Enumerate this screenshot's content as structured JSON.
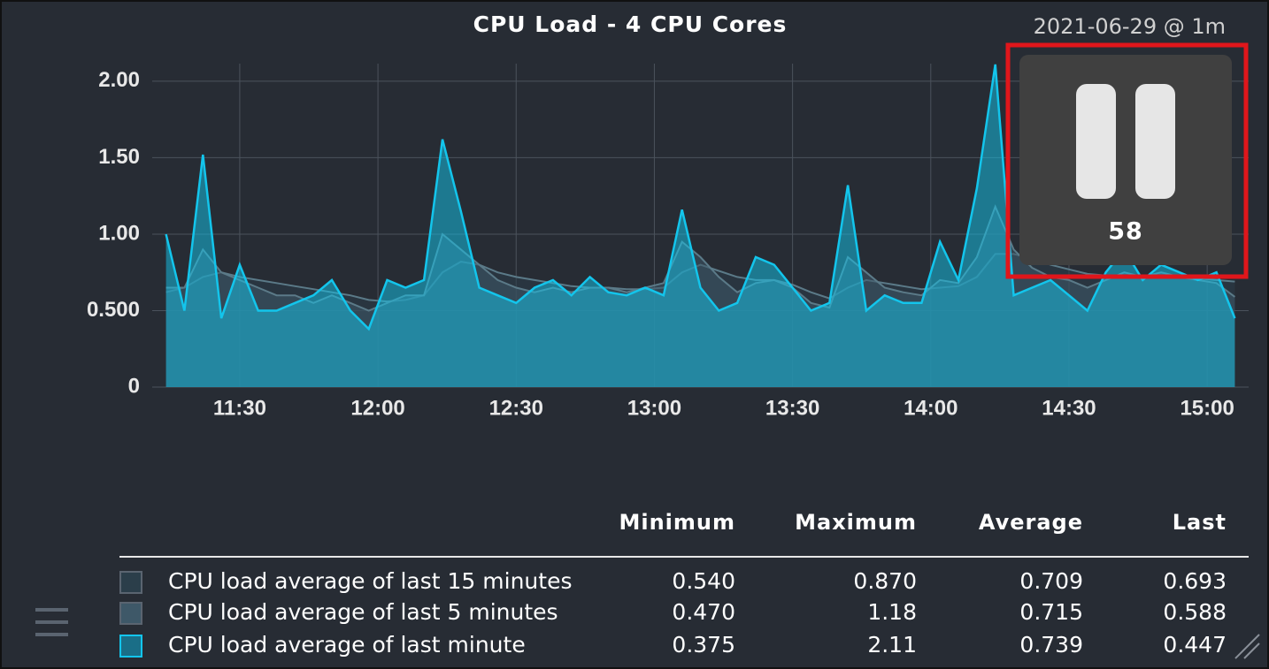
{
  "chart_data": {
    "type": "area-line",
    "title": "CPU Load - 4 CPU Cores",
    "x": [
      "11:14",
      "11:18",
      "11:22",
      "11:26",
      "11:30",
      "11:34",
      "11:38",
      "11:42",
      "11:46",
      "11:50",
      "11:54",
      "11:58",
      "12:02",
      "12:06",
      "12:10",
      "12:14",
      "12:18",
      "12:22",
      "12:26",
      "12:30",
      "12:34",
      "12:38",
      "12:42",
      "12:46",
      "12:50",
      "12:54",
      "12:58",
      "13:02",
      "13:06",
      "13:10",
      "13:14",
      "13:18",
      "13:22",
      "13:26",
      "13:30",
      "13:34",
      "13:38",
      "13:42",
      "13:46",
      "13:50",
      "13:54",
      "13:58",
      "14:02",
      "14:06",
      "14:10",
      "14:14",
      "14:18",
      "14:22",
      "14:26",
      "14:30",
      "14:34",
      "14:38",
      "14:42",
      "14:46",
      "14:50",
      "14:54",
      "14:58",
      "15:02",
      "15:06"
    ],
    "series": [
      {
        "name": "CPU load average of last 15 minutes",
        "color": "#2b3e4a",
        "values": [
          0.62,
          0.65,
          0.72,
          0.75,
          0.72,
          0.7,
          0.68,
          0.66,
          0.64,
          0.62,
          0.6,
          0.57,
          0.56,
          0.57,
          0.6,
          0.75,
          0.82,
          0.8,
          0.75,
          0.72,
          0.7,
          0.68,
          0.66,
          0.65,
          0.65,
          0.64,
          0.64,
          0.65,
          0.75,
          0.8,
          0.76,
          0.72,
          0.7,
          0.7,
          0.67,
          0.62,
          0.58,
          0.65,
          0.7,
          0.68,
          0.66,
          0.64,
          0.65,
          0.66,
          0.72,
          0.87,
          0.87,
          0.84,
          0.8,
          0.77,
          0.74,
          0.73,
          0.73,
          0.72,
          0.72,
          0.72,
          0.71,
          0.7,
          0.69
        ]
      },
      {
        "name": "CPU load average of last 5 minutes",
        "color": "#3e5868",
        "values": [
          0.65,
          0.65,
          0.9,
          0.75,
          0.7,
          0.65,
          0.6,
          0.6,
          0.55,
          0.6,
          0.55,
          0.5,
          0.55,
          0.6,
          0.6,
          1.0,
          0.9,
          0.8,
          0.7,
          0.65,
          0.62,
          0.65,
          0.62,
          0.65,
          0.65,
          0.62,
          0.65,
          0.68,
          0.95,
          0.85,
          0.72,
          0.62,
          0.68,
          0.7,
          0.65,
          0.55,
          0.52,
          0.85,
          0.75,
          0.65,
          0.62,
          0.6,
          0.7,
          0.68,
          0.85,
          1.18,
          0.9,
          0.78,
          0.72,
          0.7,
          0.65,
          0.7,
          0.75,
          0.72,
          0.75,
          0.72,
          0.7,
          0.68,
          0.59
        ]
      },
      {
        "name": "CPU load average of last minute",
        "color": "#13c5ec",
        "values": [
          1.0,
          0.5,
          1.52,
          0.45,
          0.8,
          0.5,
          0.5,
          0.55,
          0.6,
          0.7,
          0.5,
          0.38,
          0.7,
          0.65,
          0.7,
          1.62,
          1.15,
          0.65,
          0.6,
          0.55,
          0.65,
          0.7,
          0.6,
          0.72,
          0.62,
          0.6,
          0.65,
          0.6,
          1.16,
          0.65,
          0.5,
          0.55,
          0.85,
          0.8,
          0.65,
          0.5,
          0.55,
          1.32,
          0.5,
          0.6,
          0.55,
          0.55,
          0.95,
          0.7,
          1.3,
          2.11,
          0.6,
          0.65,
          0.7,
          0.6,
          0.5,
          0.75,
          0.9,
          0.7,
          0.8,
          0.75,
          0.7,
          0.75,
          0.45
        ]
      }
    ],
    "xlim": [
      "11:11",
      "15:09"
    ],
    "xticks": [
      "11:30",
      "12:00",
      "12:30",
      "13:00",
      "13:30",
      "14:00",
      "14:30",
      "15:00"
    ],
    "ylim": [
      0,
      2.115
    ],
    "yticks": [
      0,
      {
        "value": 0.5,
        "label": "0.500"
      },
      {
        "value": 1,
        "label": "1.00"
      },
      {
        "value": 1.5,
        "label": "1.50"
      },
      {
        "value": 2,
        "label": "2.00"
      }
    ],
    "grid": true
  },
  "header": {
    "timestamp": "2021-06-29 @ 1m"
  },
  "pause_overlay": {
    "count": 58
  },
  "summary_table": {
    "columns": [
      "Minimum",
      "Maximum",
      "Average",
      "Last"
    ],
    "rows": [
      [
        "0.540",
        "0.870",
        "0.709",
        "0.693"
      ],
      [
        "0.470",
        "1.18",
        "0.715",
        "0.588"
      ],
      [
        "0.375",
        "2.11",
        "0.739",
        "0.447"
      ]
    ]
  }
}
